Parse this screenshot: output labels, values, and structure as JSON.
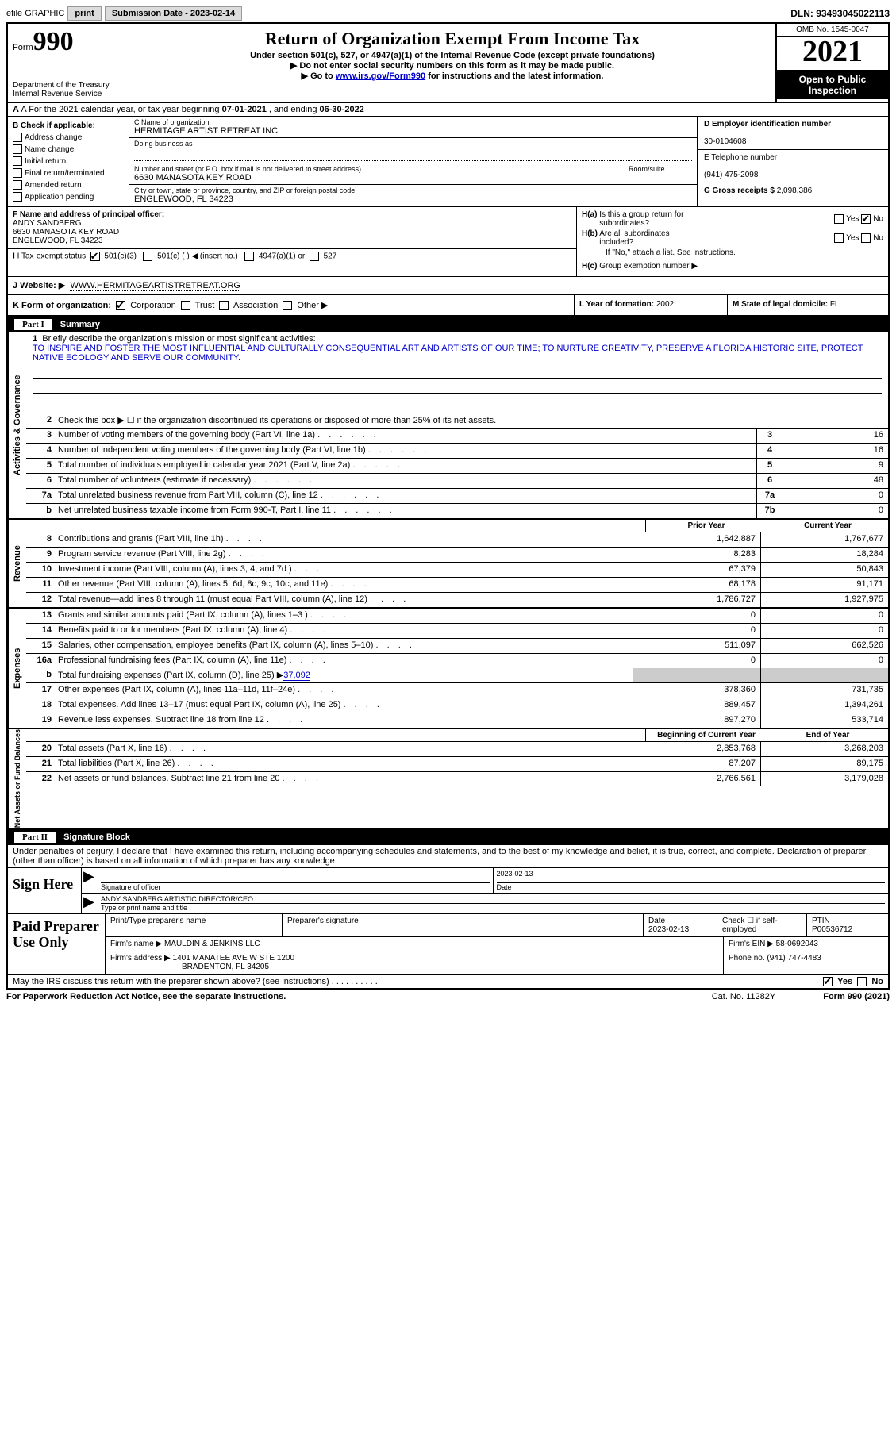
{
  "topbar": {
    "efile_label": "efile GRAPHIC",
    "print_btn": "print",
    "submission_label": "Submission Date - 2023-02-14",
    "dln": "DLN: 93493045022113"
  },
  "header": {
    "form_word": "Form",
    "form_number": "990",
    "dept": "Department of the Treasury",
    "irs": "Internal Revenue Service",
    "title": "Return of Organization Exempt From Income Tax",
    "subtitle": "Under section 501(c), 527, or 4947(a)(1) of the Internal Revenue Code (except private foundations)",
    "instruct1": "▶ Do not enter social security numbers on this form as it may be made public.",
    "instruct2_pre": "▶ Go to ",
    "instruct2_link": "www.irs.gov/Form990",
    "instruct2_post": " for instructions and the latest information.",
    "omb": "OMB No. 1545-0047",
    "year": "2021",
    "inspection": "Open to Public Inspection"
  },
  "line_a": {
    "label_pre": "A For the 2021 calendar year, or tax year beginning ",
    "begin": "07-01-2021",
    "mid": " , and ending ",
    "end": "06-30-2022"
  },
  "box_b": {
    "header": "B Check if applicable:",
    "opts": [
      "Address change",
      "Name change",
      "Initial return",
      "Final return/terminated",
      "Amended return",
      "Application pending"
    ]
  },
  "box_c": {
    "name_label": "C Name of organization",
    "name": "HERMITAGE ARTIST RETREAT INC",
    "dba_label": "Doing business as",
    "addr_label": "Number and street (or P.O. box if mail is not delivered to street address)",
    "room_label": "Room/suite",
    "addr": "6630 MANASOTA KEY ROAD",
    "city_label": "City or town, state or province, country, and ZIP or foreign postal code",
    "city": "ENGLEWOOD, FL  34223"
  },
  "box_d": {
    "ein_label": "D Employer identification number",
    "ein": "30-0104608",
    "phone_label": "E Telephone number",
    "phone": "(941) 475-2098",
    "gross_label": "G Gross receipts $",
    "gross": "2,098,386"
  },
  "box_f": {
    "label": "F Name and address of principal officer:",
    "name": "ANDY SANDBERG",
    "addr1": "6630 MANASOTA KEY ROAD",
    "addr2": "ENGLEWOOD, FL  34223"
  },
  "box_h": {
    "ha_label": "H(a)  Is this a group return for subordinates?",
    "hb_label": "H(b)  Are all subordinates included?",
    "hb_note": "If \"No,\" attach a list. See instructions.",
    "hc_label": "H(c)  Group exemption number ▶",
    "yes": "Yes",
    "no": "No"
  },
  "line_i": {
    "label": "I  Tax-exempt status:",
    "opt1": "501(c)(3)",
    "opt2": "501(c) (  ) ◀ (insert no.)",
    "opt3": "4947(a)(1) or",
    "opt4": "527"
  },
  "line_j": {
    "label": "J  Website: ▶",
    "url": "WWW.HERMITAGEARTISTRETREAT.ORG"
  },
  "line_k": {
    "label": "K Form of organization:",
    "opts": [
      "Corporation",
      "Trust",
      "Association",
      "Other ▶"
    ]
  },
  "line_l": {
    "label": "L Year of formation:",
    "val": "2002"
  },
  "line_m": {
    "label": "M State of legal domicile:",
    "val": "FL"
  },
  "part1": {
    "label": "Part I",
    "title": "Summary",
    "mission_label": "1   Briefly describe the organization's mission or most significant activities:",
    "mission": "TO INSPIRE AND FOSTER THE MOST INFLUENTIAL AND CULTURALLY CONSEQUENTIAL ART AND ARTISTS OF OUR TIME; TO NURTURE CREATIVITY, PRESERVE A FLORIDA HISTORIC SITE, PROTECT NATIVE ECOLOGY AND SERVE OUR COMMUNITY.",
    "line2": "Check this box ▶ ☐ if the organization discontinued its operations or disposed of more than 25% of its net assets.",
    "sidebar_ag": "Activities & Governance",
    "sidebar_rev": "Revenue",
    "sidebar_exp": "Expenses",
    "sidebar_na": "Net Assets or Fund Balances",
    "rows_single": [
      {
        "n": "3",
        "d": "Number of voting members of the governing body (Part VI, line 1a)",
        "box": "3",
        "v": "16"
      },
      {
        "n": "4",
        "d": "Number of independent voting members of the governing body (Part VI, line 1b)",
        "box": "4",
        "v": "16"
      },
      {
        "n": "5",
        "d": "Total number of individuals employed in calendar year 2021 (Part V, line 2a)",
        "box": "5",
        "v": "9"
      },
      {
        "n": "6",
        "d": "Total number of volunteers (estimate if necessary)",
        "box": "6",
        "v": "48"
      },
      {
        "n": "7a",
        "d": "Total unrelated business revenue from Part VIII, column (C), line 12",
        "box": "7a",
        "v": "0"
      },
      {
        "n": "b",
        "d": "Net unrelated business taxable income from Form 990-T, Part I, line 11",
        "box": "7b",
        "v": "0"
      }
    ],
    "col_prior": "Prior Year",
    "col_current": "Current Year",
    "revenue_rows": [
      {
        "n": "8",
        "d": "Contributions and grants (Part VIII, line 1h)",
        "p": "1,642,887",
        "c": "1,767,677"
      },
      {
        "n": "9",
        "d": "Program service revenue (Part VIII, line 2g)",
        "p": "8,283",
        "c": "18,284"
      },
      {
        "n": "10",
        "d": "Investment income (Part VIII, column (A), lines 3, 4, and 7d )",
        "p": "67,379",
        "c": "50,843"
      },
      {
        "n": "11",
        "d": "Other revenue (Part VIII, column (A), lines 5, 6d, 8c, 9c, 10c, and 11e)",
        "p": "68,178",
        "c": "91,171"
      },
      {
        "n": "12",
        "d": "Total revenue—add lines 8 through 11 (must equal Part VIII, column (A), line 12)",
        "p": "1,786,727",
        "c": "1,927,975"
      }
    ],
    "expense_rows": [
      {
        "n": "13",
        "d": "Grants and similar amounts paid (Part IX, column (A), lines 1–3 )",
        "p": "0",
        "c": "0"
      },
      {
        "n": "14",
        "d": "Benefits paid to or for members (Part IX, column (A), line 4)",
        "p": "0",
        "c": "0"
      },
      {
        "n": "15",
        "d": "Salaries, other compensation, employee benefits (Part IX, column (A), lines 5–10)",
        "p": "511,097",
        "c": "662,526"
      },
      {
        "n": "16a",
        "d": "Professional fundraising fees (Part IX, column (A), line 11e)",
        "p": "0",
        "c": "0"
      }
    ],
    "line16b": {
      "n": "b",
      "d": "Total fundraising expenses (Part IX, column (D), line 25) ▶",
      "v": "37,092"
    },
    "expense_rows2": [
      {
        "n": "17",
        "d": "Other expenses (Part IX, column (A), lines 11a–11d, 11f–24e)",
        "p": "378,360",
        "c": "731,735"
      },
      {
        "n": "18",
        "d": "Total expenses. Add lines 13–17 (must equal Part IX, column (A), line 25)",
        "p": "889,457",
        "c": "1,394,261"
      },
      {
        "n": "19",
        "d": "Revenue less expenses. Subtract line 18 from line 12",
        "p": "897,270",
        "c": "533,714"
      }
    ],
    "col_begin": "Beginning of Current Year",
    "col_end": "End of Year",
    "na_rows": [
      {
        "n": "20",
        "d": "Total assets (Part X, line 16)",
        "p": "2,853,768",
        "c": "3,268,203"
      },
      {
        "n": "21",
        "d": "Total liabilities (Part X, line 26)",
        "p": "87,207",
        "c": "89,175"
      },
      {
        "n": "22",
        "d": "Net assets or fund balances. Subtract line 21 from line 20",
        "p": "2,766,561",
        "c": "3,179,028"
      }
    ]
  },
  "part2": {
    "label": "Part II",
    "title": "Signature Block",
    "declare": "Under penalties of perjury, I declare that I have examined this return, including accompanying schedules and statements, and to the best of my knowledge and belief, it is true, correct, and complete. Declaration of preparer (other than officer) is based on all information of which preparer has any knowledge.",
    "sign_here": "Sign Here",
    "sig_officer": "Signature of officer",
    "sig_date_label": "Date",
    "sig_date": "2023-02-13",
    "officer_name": "ANDY SANDBERG  ARTISTIC DIRECTOR/CEO",
    "type_name_label": "Type or print name and title",
    "paid_label": "Paid Preparer Use Only",
    "prep_name_label": "Print/Type preparer's name",
    "prep_sig_label": "Preparer's signature",
    "prep_date_label": "Date",
    "prep_date": "2023-02-13",
    "prep_check_label": "Check ☐ if self-employed",
    "ptin_label": "PTIN",
    "ptin": "P00536712",
    "firm_name_label": "Firm's name    ▶",
    "firm_name": "MAULDIN & JENKINS LLC",
    "firm_ein_label": "Firm's EIN ▶",
    "firm_ein": "58-0692043",
    "firm_addr_label": "Firm's address ▶",
    "firm_addr1": "1401 MANATEE AVE W STE 1200",
    "firm_addr2": "BRADENTON, FL  34205",
    "firm_phone_label": "Phone no.",
    "firm_phone": "(941) 747-4483",
    "discuss": "May the IRS discuss this return with the preparer shown above? (see instructions)"
  },
  "footer": {
    "paperwork": "For Paperwork Reduction Act Notice, see the separate instructions.",
    "cat": "Cat. No. 11282Y",
    "form": "Form 990 (2021)"
  }
}
